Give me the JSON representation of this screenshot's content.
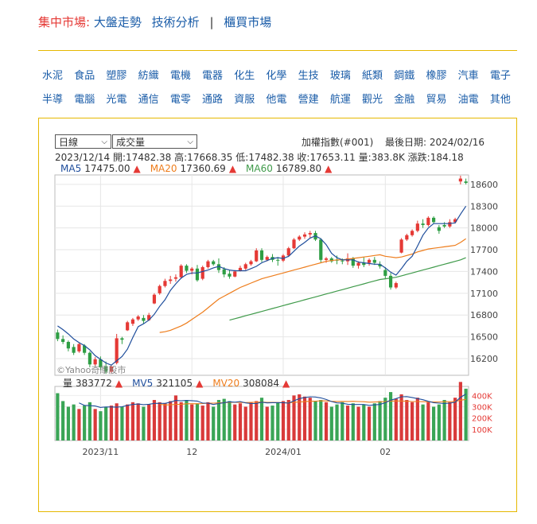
{
  "nav": {
    "current": "集中市場:",
    "links": [
      "大盤走勢",
      "技術分析"
    ],
    "separator": "|",
    "otc": "櫃買市場"
  },
  "categories": [
    [
      "水泥",
      "食品",
      "塑膠",
      "紡織",
      "電機",
      "電器",
      "化生",
      "化學",
      "生技",
      "玻璃",
      "紙類",
      "鋼鐵",
      "橡膠",
      "汽車",
      "電子"
    ],
    [
      "半導",
      "電腦",
      "光電",
      "通信",
      "電零",
      "通路",
      "資服",
      "他電",
      "營建",
      "航運",
      "觀光",
      "金融",
      "貿易",
      "油電",
      "其他"
    ]
  ],
  "controls": {
    "period_label": "日線",
    "indicator_label": "成交量",
    "chevron_icon": "chevron-down-icon"
  },
  "header": {
    "index_name": "加權指數(#001)",
    "last_date_label": "最後日期: 2024/02/16"
  },
  "ohlc": {
    "date": "2023/12/14",
    "open": "開:17482.38",
    "high": "高:17668.35",
    "low": "低:17482.38",
    "close": "收:17653.11",
    "volume": "量:383.8K",
    "change": "漲跌:184.18"
  },
  "ma_legend": [
    {
      "label": "MA5",
      "value": "17475.00",
      "color": "#1f4e9c",
      "arrow": "▲"
    },
    {
      "label": "MA20",
      "value": "17360.69",
      "color": "#ee7d1c",
      "arrow": "▲"
    },
    {
      "label": "MA60",
      "value": "16789.80",
      "color": "#3f9a4a",
      "arrow": "▲"
    }
  ],
  "vol_legend": [
    {
      "label": "量",
      "value": "383772",
      "color": "#333333",
      "arrow": "▲"
    },
    {
      "label": "MV5",
      "value": "321105",
      "color": "#1f4e9c",
      "arrow": "▲"
    },
    {
      "label": "MV20",
      "value": "308084",
      "color": "#ee7d1c",
      "arrow": "▲"
    }
  ],
  "watermark": "©Yahoo奇摩股市",
  "colors": {
    "up": "#e53935",
    "down": "#2e9e44",
    "ma5": "#1f4e9c",
    "ma20": "#ee7d1c",
    "ma60": "#3f9a4a",
    "volume_up": "#d93a3a",
    "volume_down": "#3aa556"
  },
  "chart_data": {
    "type": "candlestick",
    "price_axis": {
      "ticks": [
        16200,
        16500,
        16800,
        17100,
        17400,
        17700,
        18000,
        18300,
        18600
      ],
      "range": [
        15970,
        18730
      ],
      "grid": true
    },
    "volume_axis": {
      "ticks_labels": [
        "100K",
        "200K",
        "300K",
        "400K"
      ],
      "ticks": [
        100000,
        200000,
        300000,
        400000
      ],
      "range": [
        0,
        480000
      ]
    },
    "x_ticks": [
      {
        "label": "2023/11",
        "index": 8
      },
      {
        "label": "12",
        "index": 25
      },
      {
        "label": "2024/01",
        "index": 42
      },
      {
        "label": "02",
        "index": 61
      }
    ],
    "candles": [
      {
        "o": 16560,
        "h": 16600,
        "l": 16440,
        "c": 16470
      },
      {
        "o": 16470,
        "h": 16520,
        "l": 16400,
        "c": 16430
      },
      {
        "o": 16430,
        "h": 16450,
        "l": 16300,
        "c": 16340
      },
      {
        "o": 16360,
        "h": 16400,
        "l": 16250,
        "c": 16280
      },
      {
        "o": 16300,
        "h": 16420,
        "l": 16280,
        "c": 16400
      },
      {
        "o": 16380,
        "h": 16400,
        "l": 16250,
        "c": 16280
      },
      {
        "o": 16280,
        "h": 16300,
        "l": 16080,
        "c": 16120
      },
      {
        "o": 16120,
        "h": 16220,
        "l": 16100,
        "c": 16190
      },
      {
        "o": 16190,
        "h": 16230,
        "l": 16040,
        "c": 16080
      },
      {
        "o": 16090,
        "h": 16160,
        "l": 15990,
        "c": 16020
      },
      {
        "o": 16020,
        "h": 16110,
        "l": 16000,
        "c": 16090
      },
      {
        "o": 16140,
        "h": 16540,
        "l": 16120,
        "c": 16480
      },
      {
        "o": 16480,
        "h": 16500,
        "l": 16400,
        "c": 16460
      },
      {
        "o": 16590,
        "h": 16720,
        "l": 16580,
        "c": 16700
      },
      {
        "o": 16680,
        "h": 16760,
        "l": 16650,
        "c": 16740
      },
      {
        "o": 16740,
        "h": 16800,
        "l": 16720,
        "c": 16780
      },
      {
        "o": 16760,
        "h": 16800,
        "l": 16680,
        "c": 16720
      },
      {
        "o": 16730,
        "h": 16830,
        "l": 16720,
        "c": 16800
      },
      {
        "o": 16960,
        "h": 17100,
        "l": 16950,
        "c": 17080
      },
      {
        "o": 17100,
        "h": 17220,
        "l": 17080,
        "c": 17200
      },
      {
        "o": 17200,
        "h": 17300,
        "l": 17180,
        "c": 17270
      },
      {
        "o": 17270,
        "h": 17340,
        "l": 17230,
        "c": 17290
      },
      {
        "o": 17300,
        "h": 17360,
        "l": 17260,
        "c": 17320
      },
      {
        "o": 17320,
        "h": 17500,
        "l": 17300,
        "c": 17480
      },
      {
        "o": 17480,
        "h": 17500,
        "l": 17380,
        "c": 17410
      },
      {
        "o": 17410,
        "h": 17460,
        "l": 17360,
        "c": 17440
      },
      {
        "o": 17440,
        "h": 17490,
        "l": 17260,
        "c": 17280
      },
      {
        "o": 17300,
        "h": 17480,
        "l": 17280,
        "c": 17460
      },
      {
        "o": 17460,
        "h": 17560,
        "l": 17440,
        "c": 17540
      },
      {
        "o": 17540,
        "h": 17560,
        "l": 17480,
        "c": 17500
      },
      {
        "o": 17500,
        "h": 17580,
        "l": 17380,
        "c": 17420
      },
      {
        "o": 17430,
        "h": 17460,
        "l": 17320,
        "c": 17360
      },
      {
        "o": 17370,
        "h": 17420,
        "l": 17300,
        "c": 17330
      },
      {
        "o": 17330,
        "h": 17420,
        "l": 17320,
        "c": 17400
      },
      {
        "o": 17410,
        "h": 17480,
        "l": 17400,
        "c": 17450
      },
      {
        "o": 17440,
        "h": 17520,
        "l": 17420,
        "c": 17500
      },
      {
        "o": 17500,
        "h": 17560,
        "l": 17480,
        "c": 17540
      },
      {
        "o": 17540,
        "h": 17720,
        "l": 17530,
        "c": 17690
      },
      {
        "o": 17690,
        "h": 17720,
        "l": 17530,
        "c": 17560
      },
      {
        "o": 17560,
        "h": 17620,
        "l": 17540,
        "c": 17600
      },
      {
        "o": 17600,
        "h": 17640,
        "l": 17530,
        "c": 17560
      },
      {
        "o": 17560,
        "h": 17600,
        "l": 17480,
        "c": 17550
      },
      {
        "o": 17550,
        "h": 17640,
        "l": 17530,
        "c": 17620
      },
      {
        "o": 17620,
        "h": 17740,
        "l": 17600,
        "c": 17720
      },
      {
        "o": 17720,
        "h": 17860,
        "l": 17710,
        "c": 17840
      },
      {
        "o": 17840,
        "h": 17900,
        "l": 17820,
        "c": 17880
      },
      {
        "o": 17880,
        "h": 17940,
        "l": 17850,
        "c": 17910
      },
      {
        "o": 17910,
        "h": 17960,
        "l": 17860,
        "c": 17930
      },
      {
        "o": 17930,
        "h": 17960,
        "l": 17820,
        "c": 17840
      },
      {
        "o": 17840,
        "h": 17860,
        "l": 17520,
        "c": 17560
      },
      {
        "o": 17560,
        "h": 17600,
        "l": 17520,
        "c": 17580
      },
      {
        "o": 17580,
        "h": 17600,
        "l": 17520,
        "c": 17540
      },
      {
        "o": 17560,
        "h": 17620,
        "l": 17500,
        "c": 17550
      },
      {
        "o": 17550,
        "h": 17580,
        "l": 17500,
        "c": 17540
      },
      {
        "o": 17540,
        "h": 17650,
        "l": 17490,
        "c": 17580
      },
      {
        "o": 17580,
        "h": 17600,
        "l": 17450,
        "c": 17480
      },
      {
        "o": 17480,
        "h": 17540,
        "l": 17440,
        "c": 17520
      },
      {
        "o": 17520,
        "h": 17600,
        "l": 17460,
        "c": 17490
      },
      {
        "o": 17520,
        "h": 17580,
        "l": 17480,
        "c": 17560
      },
      {
        "o": 17560,
        "h": 17600,
        "l": 17490,
        "c": 17520
      },
      {
        "o": 17500,
        "h": 17540,
        "l": 17440,
        "c": 17470
      },
      {
        "o": 17420,
        "h": 17460,
        "l": 17300,
        "c": 17340
      },
      {
        "o": 17340,
        "h": 17380,
        "l": 17150,
        "c": 17180
      },
      {
        "o": 17180,
        "h": 17260,
        "l": 17160,
        "c": 17240
      },
      {
        "o": 17660,
        "h": 17860,
        "l": 17650,
        "c": 17840
      },
      {
        "o": 17840,
        "h": 17920,
        "l": 17820,
        "c": 17900
      },
      {
        "o": 17900,
        "h": 17980,
        "l": 17880,
        "c": 17960
      },
      {
        "o": 17960,
        "h": 18100,
        "l": 17940,
        "c": 18060
      },
      {
        "o": 18060,
        "h": 18120,
        "l": 18000,
        "c": 18040
      },
      {
        "o": 18040,
        "h": 18160,
        "l": 18020,
        "c": 18140
      },
      {
        "o": 18140,
        "h": 18160,
        "l": 18060,
        "c": 18080
      },
      {
        "o": 18010,
        "h": 18040,
        "l": 17920,
        "c": 17960
      },
      {
        "o": 18040,
        "h": 18080,
        "l": 18000,
        "c": 18020
      },
      {
        "o": 18020,
        "h": 18120,
        "l": 18000,
        "c": 18080
      },
      {
        "o": 18080,
        "h": 18140,
        "l": 18060,
        "c": 18120
      },
      {
        "o": 18640,
        "h": 18720,
        "l": 18600,
        "c": 18680
      },
      {
        "o": 18640,
        "h": 18680,
        "l": 18600,
        "c": 18620
      }
    ],
    "volume": [
      420000,
      350000,
      300000,
      320000,
      280000,
      310000,
      340000,
      280000,
      260000,
      300000,
      310000,
      330000,
      300000,
      320000,
      340000,
      330000,
      300000,
      320000,
      360000,
      340000,
      330000,
      350000,
      400000,
      340000,
      360000,
      320000,
      330000,
      310000,
      340000,
      300000,
      360000,
      370000,
      350000,
      320000,
      330000,
      300000,
      340000,
      350000,
      380000,
      300000,
      310000,
      340000,
      350000,
      360000,
      400000,
      410000,
      390000,
      380000,
      350000,
      360000,
      340000,
      300000,
      320000,
      340000,
      310000,
      330000,
      300000,
      320000,
      300000,
      330000,
      350000,
      380000,
      430000,
      370000,
      410000,
      360000,
      340000,
      380000,
      320000,
      340000,
      300000,
      320000,
      360000,
      340000,
      380000,
      520000,
      460000
    ],
    "ma5": [
      16650,
      16600,
      16540,
      16470,
      16420,
      16380,
      16320,
      16240,
      16190,
      16140,
      16110,
      16170,
      16230,
      16330,
      16490,
      16640,
      16680,
      16730,
      16810,
      16920,
      17010,
      17140,
      17230,
      17310,
      17360,
      17380,
      17380,
      17400,
      17420,
      17450,
      17470,
      17440,
      17420,
      17410,
      17410,
      17410,
      17440,
      17470,
      17520,
      17550,
      17580,
      17590,
      17580,
      17610,
      17680,
      17750,
      17800,
      17860,
      17890,
      17850,
      17770,
      17650,
      17590,
      17560,
      17560,
      17560,
      17530,
      17520,
      17510,
      17500,
      17500,
      17450,
      17390,
      17350,
      17440,
      17540,
      17610,
      17750,
      17900,
      18000,
      18060,
      18060,
      18060,
      18060,
      18070,
      18190,
      18300
    ],
    "ma20": [
      null,
      null,
      null,
      null,
      null,
      null,
      null,
      null,
      null,
      null,
      null,
      null,
      null,
      null,
      null,
      null,
      null,
      null,
      null,
      16560,
      16570,
      16590,
      16620,
      16650,
      16690,
      16740,
      16790,
      16840,
      16900,
      16960,
      17020,
      17060,
      17100,
      17140,
      17180,
      17210,
      17240,
      17270,
      17300,
      17320,
      17340,
      17360,
      17380,
      17400,
      17420,
      17440,
      17460,
      17480,
      17500,
      17520,
      17540,
      17550,
      17560,
      17560,
      17570,
      17580,
      17590,
      17600,
      17610,
      17620,
      17630,
      17610,
      17600,
      17590,
      17600,
      17620,
      17640,
      17670,
      17690,
      17710,
      17720,
      17730,
      17740,
      17750,
      17760,
      17800,
      17850
    ],
    "ma60": [
      null,
      null,
      null,
      null,
      null,
      null,
      null,
      null,
      null,
      null,
      null,
      null,
      null,
      null,
      null,
      null,
      null,
      null,
      null,
      null,
      null,
      null,
      null,
      null,
      null,
      null,
      null,
      null,
      null,
      null,
      null,
      null,
      16730,
      16750,
      16770,
      16790,
      16810,
      16830,
      16850,
      16870,
      16890,
      16910,
      16930,
      16950,
      16970,
      16990,
      17010,
      17030,
      17050,
      17070,
      17090,
      17110,
      17130,
      17150,
      17170,
      17190,
      17210,
      17230,
      17250,
      17270,
      17290,
      17300,
      17310,
      17320,
      17340,
      17360,
      17380,
      17400,
      17420,
      17440,
      17460,
      17480,
      17500,
      17520,
      17540,
      17560,
      17590
    ]
  }
}
